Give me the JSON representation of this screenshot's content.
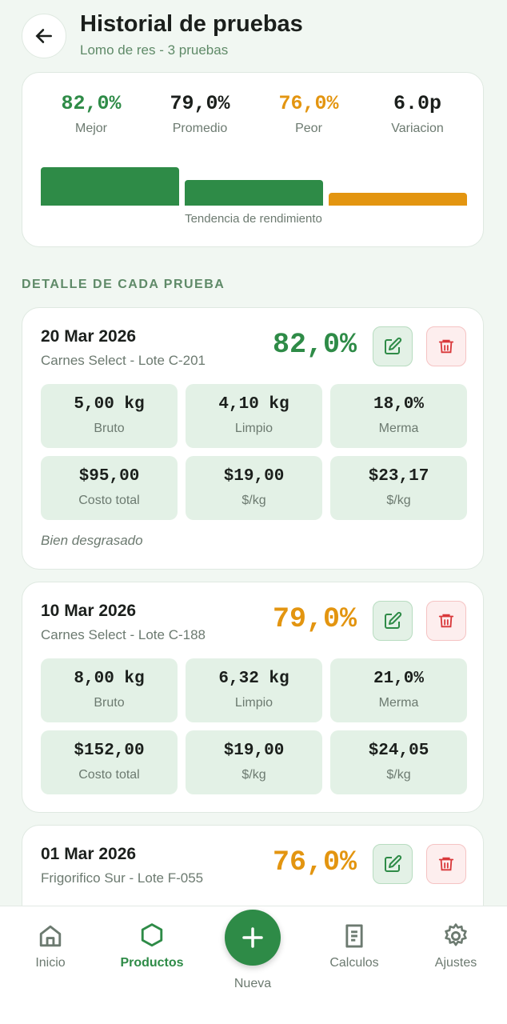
{
  "header": {
    "title": "Historial de pruebas",
    "subtitle": "Lomo de res - 3 pruebas"
  },
  "summary": {
    "stats": [
      {
        "value": "82,0%",
        "label": "Mejor",
        "color": "#2e8b47"
      },
      {
        "value": "79,0%",
        "label": "Promedio",
        "color": "#1b1f1c"
      },
      {
        "value": "76,0%",
        "label": "Peor",
        "color": "#e39510"
      },
      {
        "value": "6.0p",
        "label": "Variacion",
        "color": "#1b1f1c"
      }
    ],
    "trend": {
      "label": "Tendencia de rendimiento",
      "values": [
        82.0,
        79.0,
        76.0
      ],
      "colors": [
        "#2e8b47",
        "#2e8b47",
        "#e39510"
      ]
    }
  },
  "section_title": "DETALLE DE CADA PRUEBA",
  "tests": [
    {
      "date": "20 Mar 2026",
      "supplier": "Carnes Select - Lote C-201",
      "yield": "82,0%",
      "color": "#2e8b47",
      "metrics": [
        {
          "value": "5,00 kg",
          "label": "Bruto"
        },
        {
          "value": "4,10 kg",
          "label": "Limpio"
        },
        {
          "value": "18,0%",
          "label": "Merma"
        },
        {
          "value": "$95,00",
          "label": "Costo total"
        },
        {
          "value": "$19,00",
          "label": "$/kg"
        },
        {
          "value": "$23,17",
          "label": "$/kg"
        }
      ],
      "note": "Bien desgrasado"
    },
    {
      "date": "10 Mar 2026",
      "supplier": "Carnes Select - Lote C-188",
      "yield": "79,0%",
      "color": "#e39510",
      "metrics": [
        {
          "value": "8,00 kg",
          "label": "Bruto"
        },
        {
          "value": "6,32 kg",
          "label": "Limpio"
        },
        {
          "value": "21,0%",
          "label": "Merma"
        },
        {
          "value": "$152,00",
          "label": "Costo total"
        },
        {
          "value": "$19,00",
          "label": "$/kg"
        },
        {
          "value": "$24,05",
          "label": "$/kg"
        }
      ]
    },
    {
      "date": "01 Mar 2026",
      "supplier": "Frigorifico Sur - Lote F-055",
      "yield": "76,0%",
      "color": "#e39510"
    }
  ],
  "nav": {
    "items": [
      "Inicio",
      "Productos",
      "Nueva",
      "Calculos",
      "Ajustes"
    ]
  }
}
